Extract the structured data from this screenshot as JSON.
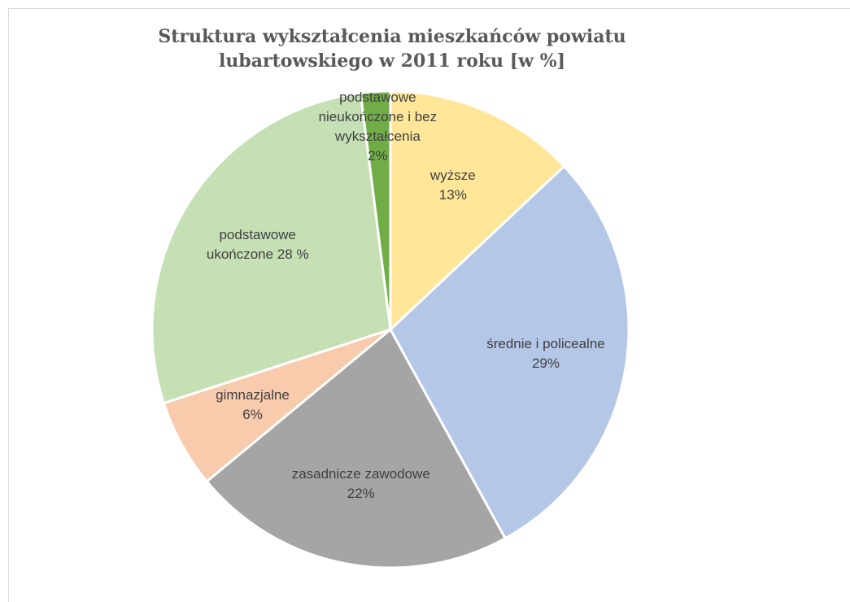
{
  "chart_data": {
    "type": "pie",
    "title": "Struktura wykształcenia mieszkańców powiatu lubartowskiego w 2011 roku [w %]",
    "categories": [
      "wyższe",
      "średnie i policealne",
      "zasadnicze zawodowe",
      "gimnazjalne",
      "podstawowe ukończone",
      "podstawowe nieukończone i bez wykształcenia"
    ],
    "values": [
      13,
      29,
      22,
      6,
      28,
      2
    ],
    "value_labels": [
      "13%",
      "29%",
      "22%",
      "6%",
      "28 %",
      "2%"
    ],
    "colors": [
      "#ffe699",
      "#b4c7e7",
      "#a5a5a5",
      "#f8cbad",
      "#c5e0b4",
      "#70ad47"
    ]
  }
}
